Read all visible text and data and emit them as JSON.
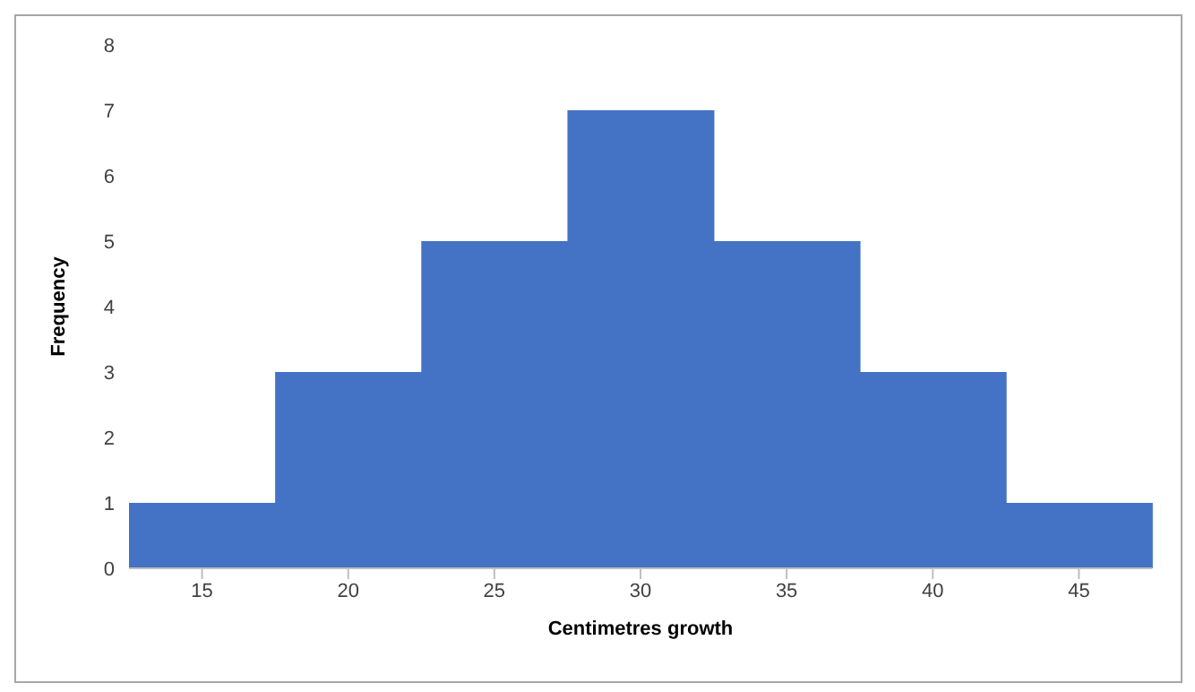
{
  "chart_data": {
    "type": "bar",
    "xlabel": "Centimetres growth",
    "ylabel": "Frequency",
    "categories": [
      "15",
      "20",
      "25",
      "30",
      "35",
      "40",
      "45"
    ],
    "values": [
      1,
      3,
      5,
      7,
      5,
      3,
      1
    ],
    "color": "#4472c4",
    "ylim": [
      0,
      8
    ],
    "yticks": [
      0,
      1,
      2,
      3,
      4,
      5,
      6,
      7,
      8
    ],
    "grid": false
  }
}
